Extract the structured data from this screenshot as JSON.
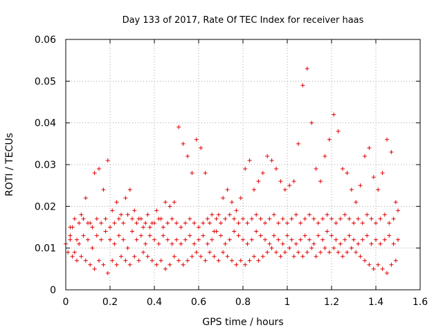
{
  "chart_data": {
    "type": "scatter",
    "title": "Day 133 of 2017, Rate Of TEC Index for receiver haas",
    "xlabel": "GPS time / hours",
    "ylabel": "ROTI / TECUs",
    "xlim": [
      0,
      1.6
    ],
    "ylim": [
      0,
      0.06
    ],
    "xticks": [
      "0",
      "0.2",
      "0.4",
      "0.6",
      "0.8",
      "1",
      "1.2",
      "1.4",
      "1.6"
    ],
    "yticks": [
      "0",
      "0.01",
      "0.02",
      "0.03",
      "0.04",
      "0.05",
      "0.06"
    ],
    "grid": true,
    "marker": "plus",
    "color": "#e00000",
    "series": [
      {
        "x": [
          0.02,
          0.03,
          0.05,
          0.07,
          0.09,
          0.11,
          0.13,
          0.15,
          0.17,
          0.19,
          0.21,
          0.23,
          0.25,
          0.27,
          0.29,
          0.31,
          0.33,
          0.35,
          0.37,
          0.39,
          0.41,
          0.43,
          0.45,
          0.47,
          0.49,
          0.51,
          0.53,
          0.55,
          0.57,
          0.59,
          0.61,
          0.63,
          0.65,
          0.67,
          0.69,
          0.71,
          0.73,
          0.75,
          0.77,
          0.79,
          0.81,
          0.83,
          0.85,
          0.87,
          0.89,
          0.91,
          0.93,
          0.95,
          0.97,
          0.99,
          1.01,
          1.03,
          1.05,
          1.07,
          1.09,
          1.11,
          1.13,
          1.15,
          1.17,
          1.19,
          1.21,
          1.23,
          1.25,
          1.27,
          1.29,
          1.31,
          1.33,
          1.35,
          1.37,
          1.39,
          1.41,
          1.43,
          1.45,
          1.47,
          1.49,
          1.5
        ],
        "y": [
          0.013,
          0.015,
          0.012,
          0.018,
          0.022,
          0.016,
          0.028,
          0.029,
          0.024,
          0.031,
          0.019,
          0.021,
          0.018,
          0.022,
          0.024,
          0.019,
          0.017,
          0.015,
          0.018,
          0.016,
          0.019,
          0.017,
          0.021,
          0.02,
          0.021,
          0.039,
          0.035,
          0.032,
          0.028,
          0.036,
          0.034,
          0.028,
          0.016,
          0.014,
          0.018,
          0.022,
          0.024,
          0.021,
          0.019,
          0.022,
          0.029,
          0.031,
          0.024,
          0.026,
          0.028,
          0.032,
          0.031,
          0.029,
          0.026,
          0.024,
          0.025,
          0.026,
          0.035,
          0.049,
          0.053,
          0.04,
          0.029,
          0.026,
          0.032,
          0.036,
          0.042,
          0.038,
          0.029,
          0.028,
          0.024,
          0.021,
          0.025,
          0.032,
          0.034,
          0.027,
          0.024,
          0.028,
          0.036,
          0.033,
          0.021,
          0.019
        ]
      },
      {
        "x": [
          0.0,
          0.02,
          0.04,
          0.06,
          0.08,
          0.1,
          0.12,
          0.14,
          0.16,
          0.18,
          0.2,
          0.22,
          0.24,
          0.26,
          0.28,
          0.3,
          0.32,
          0.34,
          0.36,
          0.38,
          0.4,
          0.42,
          0.44,
          0.46,
          0.48,
          0.5,
          0.52,
          0.54,
          0.56,
          0.58,
          0.6,
          0.62,
          0.64,
          0.66,
          0.68,
          0.7,
          0.72,
          0.74,
          0.76,
          0.78,
          0.8,
          0.82,
          0.84,
          0.86,
          0.88,
          0.9,
          0.92,
          0.94,
          0.96,
          0.98,
          1.0,
          1.02,
          1.04,
          1.06,
          1.08,
          1.1,
          1.12,
          1.14,
          1.16,
          1.18,
          1.2,
          1.22,
          1.24,
          1.26,
          1.28,
          1.3,
          1.32,
          1.34,
          1.36,
          1.38,
          1.4,
          1.42,
          1.44,
          1.46,
          1.48,
          1.5
        ],
        "y": [
          0.011,
          0.012,
          0.009,
          0.011,
          0.013,
          0.012,
          0.01,
          0.013,
          0.012,
          0.014,
          0.012,
          0.011,
          0.013,
          0.012,
          0.01,
          0.014,
          0.012,
          0.013,
          0.011,
          0.013,
          0.012,
          0.011,
          0.013,
          0.012,
          0.011,
          0.012,
          0.011,
          0.012,
          0.013,
          0.011,
          0.012,
          0.013,
          0.011,
          0.012,
          0.014,
          0.013,
          0.011,
          0.012,
          0.014,
          0.013,
          0.012,
          0.011,
          0.012,
          0.014,
          0.013,
          0.012,
          0.011,
          0.013,
          0.012,
          0.011,
          0.013,
          0.012,
          0.011,
          0.012,
          0.013,
          0.012,
          0.011,
          0.013,
          0.012,
          0.014,
          0.013,
          0.012,
          0.011,
          0.012,
          0.013,
          0.012,
          0.011,
          0.012,
          0.013,
          0.011,
          0.012,
          0.011,
          0.012,
          0.013,
          0.011,
          0.012
        ]
      },
      {
        "x": [
          0.01,
          0.03,
          0.05,
          0.07,
          0.09,
          0.11,
          0.13,
          0.15,
          0.17,
          0.19,
          0.21,
          0.23,
          0.25,
          0.27,
          0.29,
          0.31,
          0.33,
          0.35,
          0.37,
          0.39,
          0.41,
          0.43,
          0.45,
          0.47,
          0.49,
          0.51,
          0.53,
          0.55,
          0.57,
          0.59,
          0.61,
          0.63,
          0.65,
          0.67,
          0.69,
          0.71,
          0.73,
          0.75,
          0.77,
          0.79,
          0.81,
          0.83,
          0.85,
          0.87,
          0.89,
          0.91,
          0.93,
          0.95,
          0.97,
          0.99,
          1.01,
          1.03,
          1.05,
          1.07,
          1.09,
          1.11,
          1.13,
          1.15,
          1.17,
          1.19,
          1.21,
          1.23,
          1.25,
          1.27,
          1.29,
          1.31,
          1.33,
          1.35,
          1.37,
          1.39,
          1.41,
          1.43,
          1.45,
          1.47,
          1.49
        ],
        "y": [
          0.009,
          0.008,
          0.007,
          0.008,
          0.007,
          0.006,
          0.005,
          0.007,
          0.006,
          0.004,
          0.007,
          0.006,
          0.008,
          0.007,
          0.006,
          0.008,
          0.007,
          0.009,
          0.008,
          0.007,
          0.006,
          0.007,
          0.005,
          0.006,
          0.008,
          0.007,
          0.006,
          0.007,
          0.008,
          0.009,
          0.008,
          0.007,
          0.009,
          0.008,
          0.007,
          0.009,
          0.008,
          0.007,
          0.006,
          0.007,
          0.006,
          0.007,
          0.008,
          0.007,
          0.008,
          0.009,
          0.01,
          0.009,
          0.008,
          0.009,
          0.01,
          0.008,
          0.009,
          0.008,
          0.009,
          0.01,
          0.008,
          0.009,
          0.01,
          0.009,
          0.01,
          0.009,
          0.008,
          0.009,
          0.01,
          0.009,
          0.008,
          0.007,
          0.006,
          0.005,
          0.006,
          0.005,
          0.004,
          0.006,
          0.007
        ]
      },
      {
        "x": [
          0.02,
          0.04,
          0.06,
          0.08,
          0.1,
          0.12,
          0.14,
          0.16,
          0.18,
          0.2,
          0.22,
          0.24,
          0.26,
          0.28,
          0.3,
          0.32,
          0.34,
          0.36,
          0.38,
          0.4,
          0.42,
          0.44,
          0.46,
          0.48,
          0.5,
          0.52,
          0.54,
          0.56,
          0.58,
          0.6,
          0.62,
          0.64,
          0.66,
          0.68,
          0.7,
          0.72,
          0.74,
          0.76,
          0.78,
          0.8,
          0.82,
          0.84,
          0.86,
          0.88,
          0.9,
          0.92,
          0.94,
          0.96,
          0.98,
          1.0,
          1.02,
          1.04,
          1.06,
          1.08,
          1.1,
          1.12,
          1.14,
          1.16,
          1.18,
          1.2,
          1.22,
          1.24,
          1.26,
          1.28,
          1.3,
          1.32,
          1.34,
          1.36,
          1.38,
          1.4,
          1.42,
          1.44,
          1.46,
          1.48
        ],
        "y": [
          0.015,
          0.017,
          0.016,
          0.017,
          0.016,
          0.015,
          0.017,
          0.016,
          0.017,
          0.015,
          0.016,
          0.017,
          0.016,
          0.018,
          0.017,
          0.016,
          0.017,
          0.016,
          0.015,
          0.016,
          0.017,
          0.015,
          0.016,
          0.017,
          0.016,
          0.015,
          0.016,
          0.017,
          0.016,
          0.015,
          0.016,
          0.017,
          0.018,
          0.017,
          0.016,
          0.017,
          0.018,
          0.017,
          0.016,
          0.017,
          0.016,
          0.017,
          0.018,
          0.017,
          0.016,
          0.017,
          0.018,
          0.016,
          0.017,
          0.016,
          0.017,
          0.018,
          0.016,
          0.017,
          0.018,
          0.017,
          0.016,
          0.017,
          0.018,
          0.017,
          0.016,
          0.017,
          0.018,
          0.017,
          0.016,
          0.017,
          0.016,
          0.018,
          0.017,
          0.016,
          0.017,
          0.018,
          0.016,
          0.017
        ]
      }
    ]
  }
}
